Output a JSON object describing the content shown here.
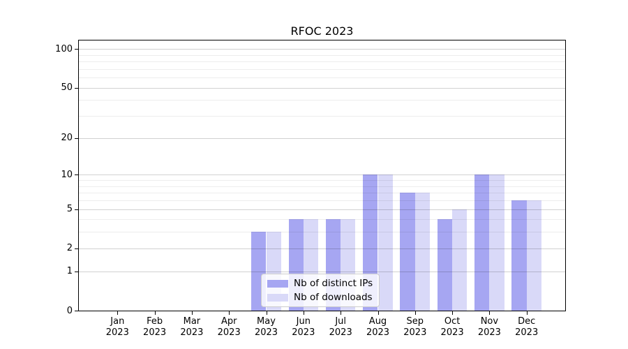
{
  "chart_data": {
    "type": "bar",
    "title": "RFOC 2023",
    "categories": [
      "Jan",
      "Feb",
      "Mar",
      "Apr",
      "May",
      "Jun",
      "Jul",
      "Aug",
      "Sep",
      "Oct",
      "Nov",
      "Dec"
    ],
    "category_year": "2023",
    "series": [
      {
        "name": "Nb of distinct IPs",
        "color": "#a6a6f2",
        "values": [
          0,
          0,
          0,
          0,
          3,
          4,
          4,
          10,
          7,
          4,
          10,
          6
        ]
      },
      {
        "name": "Nb of downloads",
        "color": "#d9d9f8",
        "values": [
          0,
          0,
          0,
          0,
          3,
          4,
          4,
          10,
          7,
          5,
          10,
          6
        ]
      }
    ],
    "y_axis": {
      "scale": "log1p",
      "ticks": [
        0,
        1,
        2,
        5,
        10,
        20,
        50,
        100
      ],
      "minor_gridlines": [
        3,
        4,
        6,
        7,
        8,
        9,
        30,
        40,
        60,
        70,
        80,
        90
      ],
      "range": [
        0,
        116.4
      ]
    },
    "legend": {
      "position": "lower center",
      "entries": [
        "Nb of distinct IPs",
        "Nb of downloads"
      ]
    },
    "grid": true
  },
  "colors": {
    "axis_frame": "#000000",
    "text": "#000000",
    "background": "#ffffff",
    "legend_border": "#cccccc"
  }
}
